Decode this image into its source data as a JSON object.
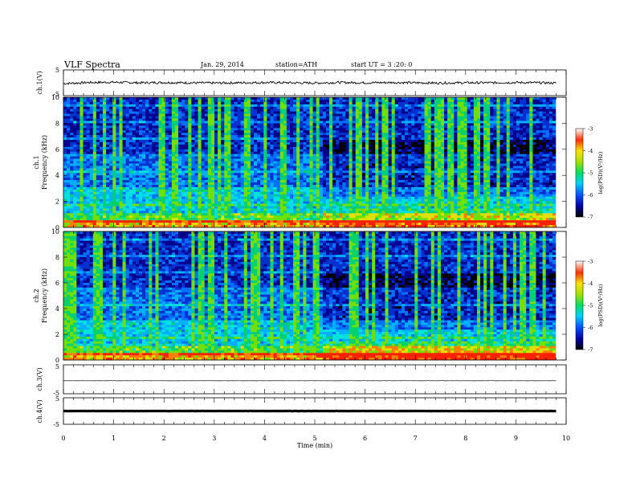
{
  "header": {
    "title": "VLF  Spectra",
    "date": "Jan. 29, 2014",
    "station": "station=ATH",
    "start": "start  UT  =   3  :20: 0"
  },
  "chart_data": [
    {
      "type": "line",
      "panel": "ch1-waveform",
      "ylabel": "ch.1(V)",
      "ylim": [
        -5,
        5
      ],
      "yticks": [
        "5",
        "-5"
      ],
      "xlim": [
        0,
        10
      ],
      "x": [
        0,
        0.5,
        1,
        1.5,
        2,
        2.5,
        3,
        3.5,
        4,
        4.5,
        5,
        5.5,
        6,
        6.5,
        7,
        7.5,
        8,
        8.5,
        9,
        9.5,
        9.8
      ],
      "values": [
        -0.3,
        0.1,
        0.2,
        0.0,
        0.1,
        0.0,
        -0.1,
        0.0,
        0.1,
        0.0,
        -0.1,
        0.1,
        0.0,
        0.1,
        0.0,
        -0.1,
        0.0,
        0.0,
        0.1,
        0.0,
        -0.1
      ]
    },
    {
      "type": "heatmap",
      "panel": "ch1-spectrogram",
      "ylabel": "Frequency  (kHz)",
      "channel_label": "ch.1",
      "ylim": [
        0,
        10
      ],
      "yticks": [
        "0",
        "2",
        "4",
        "6",
        "8",
        "10"
      ],
      "xlim": [
        0,
        10
      ],
      "colorbar": {
        "label": "log(PSD)(V²/Hz)",
        "range": [
          -7,
          -3
        ],
        "ticks": [
          "-3",
          "-4",
          "-5",
          "-6",
          "-7"
        ]
      }
    },
    {
      "type": "heatmap",
      "panel": "ch2-spectrogram",
      "ylabel": "Frequency  (kHz)",
      "channel_label": "ch.2",
      "ylim": [
        0,
        10
      ],
      "yticks": [
        "0",
        "2",
        "4",
        "6",
        "8",
        "10"
      ],
      "xlim": [
        0,
        10
      ],
      "colorbar": {
        "label": "log(PSD)(V²/Hz)",
        "range": [
          -7,
          -3
        ],
        "ticks": [
          "-3",
          "-4",
          "-5",
          "-6",
          "-7"
        ]
      }
    },
    {
      "type": "line",
      "panel": "ch3-waveform",
      "ylabel": "ch.3(V)",
      "ylim": [
        -5,
        5
      ],
      "yticks": [
        "5",
        "-5"
      ],
      "xlim": [
        0,
        10
      ],
      "x": [
        0,
        9.8
      ],
      "values": [
        -0.5,
        -0.5
      ]
    },
    {
      "type": "line",
      "panel": "ch4-waveform",
      "ylabel": "ch.4(V)",
      "ylim": [
        -5,
        5
      ],
      "yticks": [
        "5",
        "-5"
      ],
      "xlim": [
        0,
        10
      ],
      "x": [
        0,
        9.8
      ],
      "values": [
        0.0,
        0.0
      ],
      "xlabel": "Time  (min)",
      "xticks": [
        "0",
        "1",
        "2",
        "3",
        "4",
        "5",
        "6",
        "7",
        "8",
        "9",
        "10"
      ]
    }
  ]
}
